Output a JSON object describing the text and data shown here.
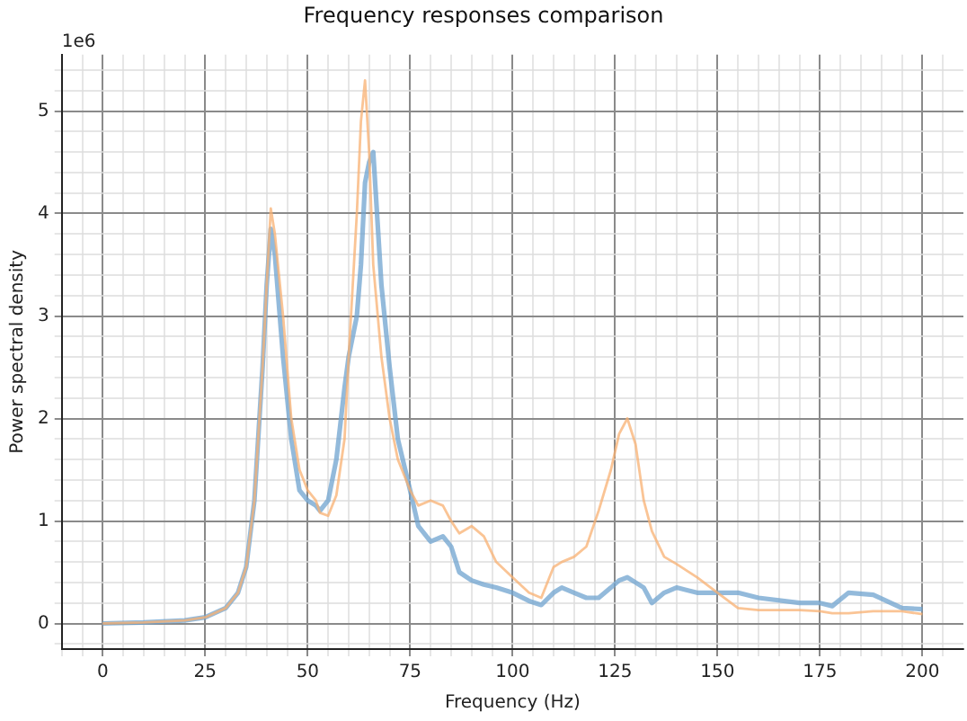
{
  "chart_data": {
    "type": "line",
    "title": "Frequency responses comparison",
    "xlabel": "Frequency (Hz)",
    "ylabel": "Power spectral density",
    "annotations": [
      "1e6"
    ],
    "x": [
      0,
      10,
      20,
      25,
      30,
      33,
      35,
      37,
      39,
      40,
      41,
      42,
      44,
      46,
      48,
      50,
      52,
      53,
      55,
      57,
      59,
      60,
      62,
      63,
      64,
      65,
      66,
      68,
      70,
      72,
      75,
      77,
      80,
      83,
      85,
      87,
      90,
      93,
      96,
      100,
      104,
      107,
      110,
      112,
      115,
      118,
      121,
      124,
      126,
      128,
      130,
      132,
      134,
      137,
      140,
      145,
      150,
      155,
      160,
      170,
      175,
      178,
      182,
      188,
      195,
      200
    ],
    "series": [
      {
        "color": "#6fa3cf",
        "values": [
          0,
          0.01,
          0.03,
          0.06,
          0.15,
          0.3,
          0.55,
          1.2,
          2.5,
          3.3,
          3.85,
          3.6,
          2.6,
          1.8,
          1.3,
          1.2,
          1.15,
          1.1,
          1.2,
          1.6,
          2.3,
          2.6,
          3.0,
          3.5,
          4.3,
          4.5,
          4.6,
          3.3,
          2.5,
          1.8,
          1.3,
          0.95,
          0.8,
          0.85,
          0.75,
          0.5,
          0.42,
          0.38,
          0.35,
          0.3,
          0.22,
          0.18,
          0.3,
          0.35,
          0.3,
          0.25,
          0.25,
          0.35,
          0.42,
          0.45,
          0.4,
          0.35,
          0.2,
          0.3,
          0.35,
          0.3,
          0.3,
          0.3,
          0.25,
          0.2,
          0.2,
          0.17,
          0.3,
          0.28,
          0.15,
          0.14
        ]
      },
      {
        "color": "#f8b072",
        "values": [
          0,
          0.01,
          0.03,
          0.06,
          0.15,
          0.3,
          0.55,
          1.2,
          2.5,
          3.3,
          4.05,
          3.8,
          3.0,
          2.0,
          1.5,
          1.3,
          1.2,
          1.08,
          1.05,
          1.25,
          1.8,
          2.6,
          4.0,
          4.9,
          5.3,
          4.6,
          3.5,
          2.6,
          2.0,
          1.6,
          1.3,
          1.15,
          1.2,
          1.15,
          1.0,
          0.88,
          0.95,
          0.85,
          0.6,
          0.45,
          0.3,
          0.25,
          0.55,
          0.6,
          0.65,
          0.75,
          1.1,
          1.5,
          1.85,
          2.0,
          1.75,
          1.2,
          0.9,
          0.65,
          0.58,
          0.45,
          0.3,
          0.15,
          0.13,
          0.13,
          0.12,
          0.1,
          0.1,
          0.12,
          0.12,
          0.09
        ]
      }
    ],
    "xlim": [
      -10,
      210
    ],
    "ylim": [
      -0.25,
      5.55
    ],
    "xticks": [
      {
        "value": -10,
        "label": null
      },
      {
        "value": -5,
        "label": null
      },
      0,
      {
        "value": 5,
        "label": null
      },
      {
        "value": 10,
        "label": null
      },
      {
        "value": 15,
        "label": null
      },
      {
        "value": 20,
        "label": null
      },
      25,
      {
        "value": 30,
        "label": null
      },
      {
        "value": 35,
        "label": null
      },
      {
        "value": 40,
        "label": null
      },
      {
        "value": 45,
        "label": null
      },
      50,
      {
        "value": 55,
        "label": null
      },
      {
        "value": 60,
        "label": null
      },
      {
        "value": 65,
        "label": null
      },
      {
        "value": 70,
        "label": null
      },
      75,
      {
        "value": 80,
        "label": null
      },
      {
        "value": 85,
        "label": null
      },
      {
        "value": 90,
        "label": null
      },
      {
        "value": 95,
        "label": null
      },
      100,
      {
        "value": 105,
        "label": null
      },
      {
        "value": 110,
        "label": null
      },
      {
        "value": 115,
        "label": null
      },
      {
        "value": 120,
        "label": null
      },
      125,
      {
        "value": 130,
        "label": null
      },
      {
        "value": 135,
        "label": null
      },
      {
        "value": 140,
        "label": null
      },
      {
        "value": 145,
        "label": null
      },
      150,
      {
        "value": 155,
        "label": null
      },
      {
        "value": 160,
        "label": null
      },
      {
        "value": 165,
        "label": null
      },
      {
        "value": 170,
        "label": null
      },
      175,
      {
        "value": 180,
        "label": null
      },
      {
        "value": 185,
        "label": null
      },
      {
        "value": 190,
        "label": null
      },
      {
        "value": 195,
        "label": null
      },
      200,
      {
        "value": 205,
        "label": null
      }
    ],
    "yticks": [
      {
        "value": -0.2,
        "label": null
      },
      0,
      {
        "value": 0.2,
        "label": null
      },
      {
        "value": 0.4,
        "label": null
      },
      {
        "value": 0.6,
        "label": null
      },
      {
        "value": 0.8,
        "label": null
      },
      1,
      {
        "value": 1.2,
        "label": null
      },
      {
        "value": 1.4,
        "label": null
      },
      {
        "value": 1.6,
        "label": null
      },
      {
        "value": 1.8,
        "label": null
      },
      2,
      {
        "value": 2.2,
        "label": null
      },
      {
        "value": 2.4,
        "label": null
      },
      {
        "value": 2.6,
        "label": null
      },
      {
        "value": 2.8,
        "label": null
      },
      3,
      {
        "value": 3.2,
        "label": null
      },
      {
        "value": 3.4,
        "label": null
      },
      {
        "value": 3.6,
        "label": null
      },
      {
        "value": 3.8,
        "label": null
      },
      4,
      {
        "value": 4.2,
        "label": null
      },
      {
        "value": 4.4,
        "label": null
      },
      {
        "value": 4.6,
        "label": null
      },
      {
        "value": 4.8,
        "label": null
      },
      5,
      {
        "value": 5.2,
        "label": null
      },
      {
        "value": 5.4,
        "label": null
      }
    ],
    "grid": true,
    "legend": false,
    "marker": "none",
    "line_style": "solid"
  }
}
